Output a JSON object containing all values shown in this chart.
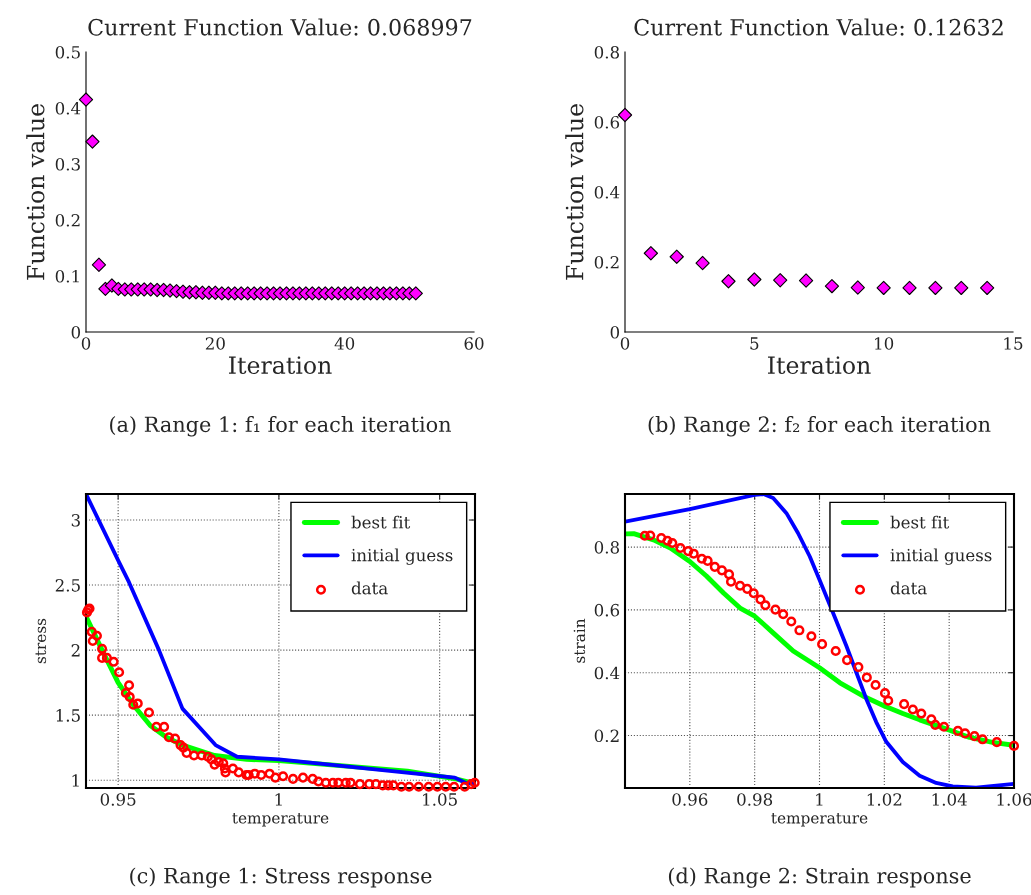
{
  "chart_data": [
    {
      "type": "scatter",
      "title": "Current Function Value: 0.068997",
      "xlabel": "Iteration",
      "ylabel": "Function value",
      "xlim": [
        0,
        60
      ],
      "xticks": [
        0,
        20,
        40,
        60
      ],
      "ylim": [
        0,
        0.5
      ],
      "yticks": [
        0,
        0.1,
        0.2,
        0.3,
        0.4,
        0.5
      ],
      "marker": "diamond",
      "grid": false,
      "legend": false,
      "series": [
        {
          "color": "#ff00ff",
          "x": [
            0,
            1,
            2,
            3,
            4,
            5,
            6,
            7,
            8,
            9,
            10,
            11,
            12,
            13,
            14,
            15,
            16,
            17,
            18,
            19,
            20,
            21,
            22,
            23,
            24,
            25,
            26,
            27,
            28,
            29,
            30,
            31,
            32,
            33,
            34,
            35,
            36,
            37,
            38,
            39,
            40,
            41,
            42,
            43,
            44,
            45,
            46,
            47,
            48,
            49,
            50,
            51
          ],
          "values": [
            0.415,
            0.34,
            0.12,
            0.077,
            0.083,
            0.077,
            0.076,
            0.076,
            0.076,
            0.076,
            0.076,
            0.075,
            0.075,
            0.074,
            0.073,
            0.072,
            0.071,
            0.071,
            0.07,
            0.07,
            0.07,
            0.069,
            0.069,
            0.069,
            0.069,
            0.069,
            0.069,
            0.069,
            0.069,
            0.069,
            0.069,
            0.069,
            0.069,
            0.069,
            0.069,
            0.069,
            0.069,
            0.069,
            0.069,
            0.069,
            0.069,
            0.069,
            0.069,
            0.069,
            0.069,
            0.069,
            0.069,
            0.069,
            0.069,
            0.069,
            0.069,
            0.069
          ]
        }
      ],
      "annotations": [
        "(a) Range 1: f₁ for each iteration"
      ]
    },
    {
      "type": "scatter",
      "title": "Current Function Value: 0.12632",
      "xlabel": "Iteration",
      "ylabel": "Function value",
      "xlim": [
        0,
        15
      ],
      "xticks": [
        0,
        5,
        10,
        15
      ],
      "ylim": [
        0,
        0.8
      ],
      "yticks": [
        0,
        0.2,
        0.4,
        0.6,
        0.8
      ],
      "marker": "diamond",
      "grid": false,
      "legend": false,
      "series": [
        {
          "color": "#ff00ff",
          "x": [
            0,
            1,
            2,
            3,
            4,
            5,
            6,
            7,
            8,
            9,
            10,
            11,
            12,
            13,
            14
          ],
          "values": [
            0.62,
            0.225,
            0.215,
            0.197,
            0.145,
            0.15,
            0.148,
            0.147,
            0.131,
            0.127,
            0.126,
            0.126,
            0.126,
            0.126,
            0.126
          ]
        }
      ],
      "annotations": [
        "(b) Range 2: f₂ for each iteration"
      ]
    },
    {
      "type": "line",
      "xlabel": "temperature",
      "ylabel": "stress",
      "xlim": [
        0.94,
        1.061
      ],
      "xticks": [
        0.95,
        1,
        1.05
      ],
      "ylim": [
        0.94,
        3.2
      ],
      "yticks": [
        1,
        1.5,
        2,
        2.5,
        3
      ],
      "grid": true,
      "legend": "top right",
      "series": [
        {
          "name": "best fit",
          "color": "#00ff00",
          "x": [
            0.94,
            0.945,
            0.95,
            0.955,
            0.96,
            0.965,
            0.97,
            0.98,
            0.99,
            1.0,
            1.02,
            1.04,
            1.055,
            1.06
          ],
          "values": [
            2.26,
            2.0,
            1.75,
            1.57,
            1.42,
            1.33,
            1.27,
            1.19,
            1.16,
            1.15,
            1.11,
            1.07,
            1.01,
            0.98
          ]
        },
        {
          "name": "initial guess",
          "color": "#0000ff",
          "x": [
            0.94,
            0.95,
            0.9534,
            0.9627,
            0.97,
            0.9803,
            0.987,
            1.0,
            1.0547,
            1.058,
            1.061
          ],
          "values": [
            3.2,
            2.69,
            2.52,
            2.0,
            1.55,
            1.27,
            1.18,
            1.16,
            1.02,
            0.98,
            0.97
          ]
        },
        {
          "name": "data",
          "type": "scatter",
          "marker": "circle",
          "color": "#ff0000",
          "x": [
            0.9403,
            0.9407,
            0.9411,
            0.9418,
            0.9421,
            0.9434,
            0.945,
            0.945,
            0.9465,
            0.9486,
            0.9503,
            0.9524,
            0.9534,
            0.9536,
            0.9547,
            0.9561,
            0.9596,
            0.9619,
            0.9643,
            0.9658,
            0.9677,
            0.9694,
            0.9703,
            0.9713,
            0.9736,
            0.976,
            0.9779,
            0.979,
            0.98,
            0.9813,
            0.9827,
            0.9834,
            0.9832,
            0.9857,
            0.9875,
            0.9899,
            0.9906,
            0.9925,
            0.9945,
            0.9971,
            0.9989,
            1.0013,
            1.0044,
            1.0075,
            1.0105,
            1.0123,
            1.0146,
            1.0168,
            1.0185,
            1.0208,
            1.0223,
            1.0252,
            1.0281,
            1.0302,
            1.0323,
            1.034,
            1.0356,
            1.0381,
            1.0405,
            1.0435,
            1.0466,
            1.0493,
            1.0519,
            1.0545,
            1.0578,
            1.0598,
            1.0609
          ],
          "values": [
            2.29,
            2.31,
            2.32,
            2.14,
            2.07,
            2.11,
            2.01,
            1.94,
            1.94,
            1.91,
            1.83,
            1.67,
            1.73,
            1.64,
            1.58,
            1.59,
            1.52,
            1.41,
            1.41,
            1.33,
            1.32,
            1.27,
            1.25,
            1.21,
            1.19,
            1.19,
            1.18,
            1.16,
            1.12,
            1.14,
            1.13,
            1.06,
            1.09,
            1.09,
            1.06,
            1.04,
            1.04,
            1.05,
            1.04,
            1.05,
            1.02,
            1.03,
            1.01,
            1.02,
            1.01,
            0.99,
            0.98,
            0.98,
            0.98,
            0.98,
            0.98,
            0.97,
            0.97,
            0.97,
            0.96,
            0.96,
            0.96,
            0.95,
            0.95,
            0.95,
            0.95,
            0.95,
            0.95,
            0.95,
            0.95,
            0.97,
            0.98
          ]
        }
      ],
      "annotations": [
        "(c) Range 1: Stress response"
      ]
    },
    {
      "type": "line",
      "xlabel": "temperature",
      "ylabel": "strain",
      "xlim": [
        0.94,
        1.06
      ],
      "xticks": [
        0.96,
        0.98,
        1,
        1.02,
        1.04,
        1.06
      ],
      "ylim": [
        0.033,
        0.969
      ],
      "yticks": [
        0.2,
        0.4,
        0.6,
        0.8
      ],
      "grid": true,
      "legend": "top right",
      "series": [
        {
          "name": "best fit",
          "color": "#00ff00",
          "x": [
            0.94,
            0.9427,
            0.9488,
            0.954,
            0.96,
            0.9652,
            0.9704,
            0.9755,
            0.98,
            0.9857,
            0.9919,
            1.0,
            1.0063,
            1.0134,
            1.02,
            1.0257,
            1.0309,
            1.0399,
            1.0463,
            1.0534,
            1.06
          ],
          "values": [
            0.842,
            0.843,
            0.823,
            0.797,
            0.754,
            0.707,
            0.654,
            0.606,
            0.58,
            0.527,
            0.469,
            0.416,
            0.368,
            0.326,
            0.294,
            0.27,
            0.25,
            0.218,
            0.194,
            0.178,
            0.169
          ]
        },
        {
          "name": "initial guess",
          "color": "#0000ff",
          "x": [
            0.94,
            0.96,
            0.98,
            0.9827,
            0.9857,
            0.9898,
            0.9934,
            0.997,
            1.0,
            1.0042,
            1.0083,
            1.0114,
            1.0145,
            1.0175,
            1.0206,
            1.0257,
            1.0309,
            1.036,
            1.0411,
            1.0483,
            1.06
          ],
          "values": [
            0.881,
            0.921,
            0.966,
            0.969,
            0.956,
            0.908,
            0.844,
            0.77,
            0.696,
            0.59,
            0.485,
            0.4,
            0.315,
            0.243,
            0.18,
            0.116,
            0.072,
            0.049,
            0.038,
            0.034,
            0.046
          ]
        },
        {
          "name": "data",
          "type": "scatter",
          "marker": "circle",
          "color": "#ff0000",
          "x": [
            0.9461,
            0.9478,
            0.9512,
            0.9531,
            0.9546,
            0.9571,
            0.9595,
            0.9612,
            0.9637,
            0.9655,
            0.9677,
            0.9699,
            0.9721,
            0.9727,
            0.9755,
            0.9777,
            0.9797,
            0.9818,
            0.9833,
            0.9864,
            0.9888,
            0.9913,
            0.9938,
            0.9975,
            1.0008,
            1.005,
            1.0085,
            1.012,
            1.0146,
            1.0173,
            1.0202,
            1.0212,
            1.0261,
            1.0288,
            1.0314,
            1.0345,
            1.0357,
            1.0384,
            1.0427,
            1.0449,
            1.0478,
            1.0503,
            1.0547,
            1.06
          ],
          "values": [
            0.836,
            0.837,
            0.829,
            0.82,
            0.813,
            0.797,
            0.787,
            0.779,
            0.763,
            0.756,
            0.737,
            0.726,
            0.713,
            0.69,
            0.677,
            0.667,
            0.653,
            0.633,
            0.615,
            0.601,
            0.586,
            0.563,
            0.535,
            0.516,
            0.491,
            0.469,
            0.44,
            0.418,
            0.385,
            0.361,
            0.335,
            0.311,
            0.3,
            0.283,
            0.27,
            0.252,
            0.234,
            0.228,
            0.215,
            0.207,
            0.198,
            0.188,
            0.179,
            0.167
          ]
        }
      ],
      "annotations": [
        "(d) Range 2: Strain response"
      ]
    }
  ]
}
